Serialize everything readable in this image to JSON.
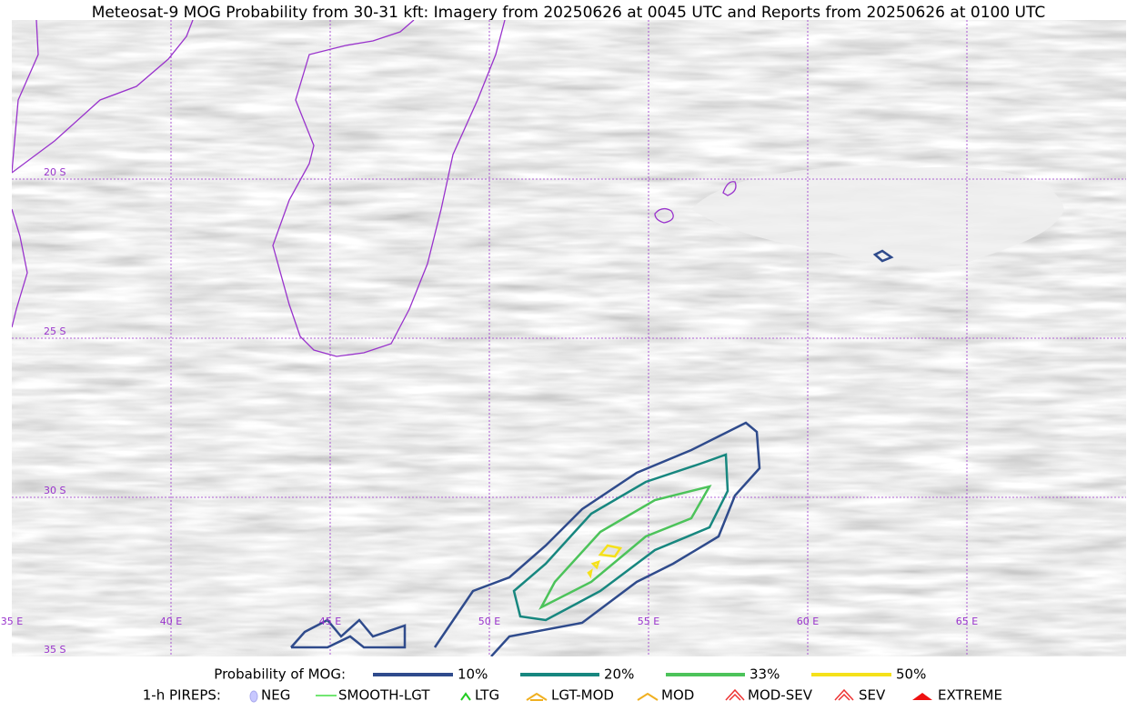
{
  "title": "Meteosat-9 MOG Probability from 30-31 kft: Imagery from 20250626 at 0045 UTC and Reports from 20250626 at 0100 UTC",
  "map": {
    "lat_labels": [
      "20 S",
      "25 S",
      "30 S",
      "35 S"
    ],
    "lon_labels": [
      "35 E",
      "40 E",
      "45 E",
      "50 E",
      "55 E",
      "60 E",
      "65 E"
    ]
  },
  "legend": {
    "probability": {
      "label": "Probability of MOG:",
      "items": [
        "10%",
        "20%",
        "33%",
        "50%"
      ]
    },
    "pireps": {
      "label": "1-h PIREPS:",
      "items": [
        "NEG",
        "SMOOTH-LGT",
        "LTG",
        "LGT-MOD",
        "MOD",
        "MOD-SEV",
        "SEV",
        "EXTREME"
      ]
    }
  }
}
